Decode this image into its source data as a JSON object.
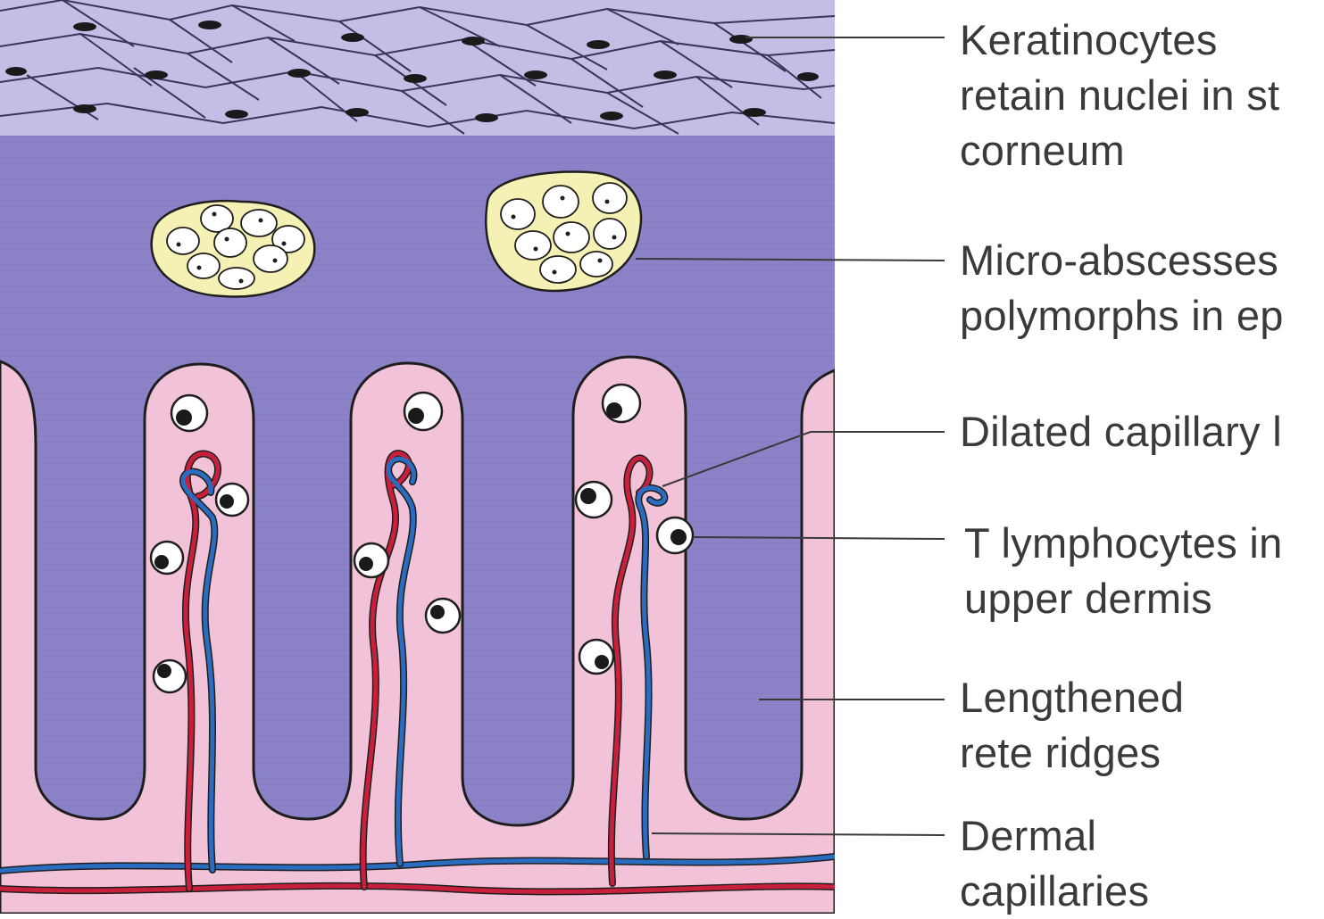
{
  "labels": {
    "keratinocytes": {
      "lines": [
        "Keratinocytes",
        "retain nuclei in st",
        "corneum"
      ]
    },
    "micro_abscesses": {
      "lines": [
        "Micro-abscesses",
        "polymorphs in ep"
      ]
    },
    "dilated_capillary": {
      "lines": [
        "Dilated capillary l"
      ]
    },
    "t_lymphocytes": {
      "lines": [
        "T lymphocytes in",
        "upper dermis"
      ]
    },
    "rete_ridges": {
      "lines": [
        "Lengthened",
        "rete ridges"
      ]
    },
    "dermal_capillaries": {
      "lines": [
        "Dermal",
        "capillaries"
      ]
    }
  },
  "colors": {
    "epidermis": "#8c82c8",
    "stratum_corneum": "#c6bde6",
    "dermis": "#f2c2d8",
    "abscess": "#f5f0b4",
    "artery": "#c8203c",
    "vein": "#2a6cc0",
    "outline": "#1e1e1e",
    "leader_line": "#3a3a3a"
  }
}
